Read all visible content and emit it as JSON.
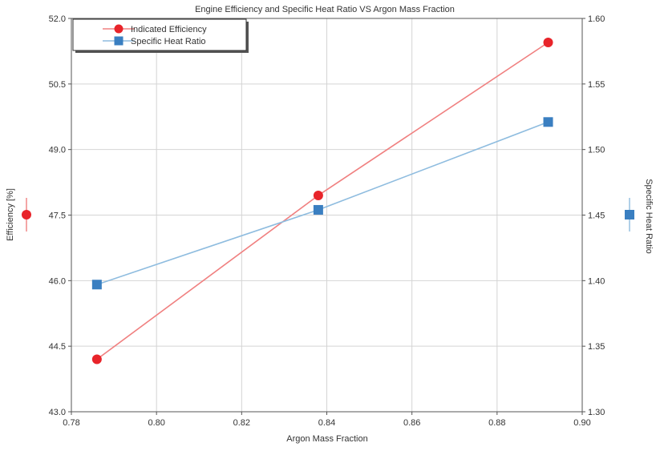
{
  "chart_data": {
    "type": "line",
    "title": "Engine Efficiency and Specific Heat Ratio VS Argon Mass Fraction",
    "xlabel": "Argon Mass Fraction",
    "ylabel_left": "Efficiency [%]",
    "ylabel_right": "Specific Heat Ratio",
    "xlim": [
      0.78,
      0.9
    ],
    "ylim_left": [
      43.0,
      52.0
    ],
    "ylim_right": [
      1.3,
      1.6
    ],
    "xticks": [
      "0.78",
      "0.80",
      "0.82",
      "0.84",
      "0.86",
      "0.88",
      "0.90"
    ],
    "yticks_left": [
      "43.0",
      "44.5",
      "46.0",
      "47.5",
      "49.0",
      "50.5",
      "52.0"
    ],
    "yticks_right": [
      "1.30",
      "1.35",
      "1.40",
      "1.45",
      "1.50",
      "1.55",
      "1.60"
    ],
    "grid": true,
    "legend_position": "top-left",
    "series": [
      {
        "name": "Indicated Efficiency",
        "axis": "left",
        "marker": "circle",
        "line_color": "#f08080",
        "marker_color": "#e8242a",
        "x": [
          0.786,
          0.838,
          0.892
        ],
        "y": [
          44.2,
          47.95,
          51.45
        ]
      },
      {
        "name": "Specific Heat Ratio",
        "axis": "right",
        "marker": "square",
        "line_color": "#8ebcdf",
        "marker_color": "#3a7fc1",
        "x": [
          0.786,
          0.838,
          0.892
        ],
        "y": [
          1.397,
          1.454,
          1.521
        ]
      }
    ]
  }
}
